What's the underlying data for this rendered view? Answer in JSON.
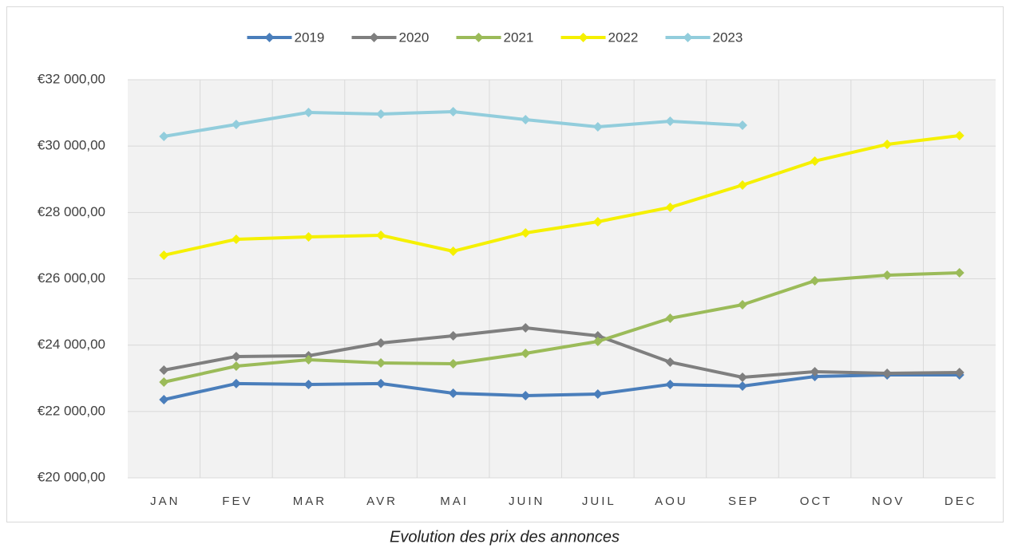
{
  "chart_data": {
    "type": "line",
    "caption": "Evolution des prix des annonces",
    "categories": [
      "JAN",
      "FEV",
      "MAR",
      "AVR",
      "MAI",
      "JUIN",
      "JUIL",
      "AOU",
      "SEP",
      "OCT",
      "NOV",
      "DEC"
    ],
    "series": [
      {
        "name": "2019",
        "color": "#4a7ebb",
        "values": [
          22357,
          22840,
          22815,
          22840,
          22550,
          22477,
          22525,
          22815,
          22766,
          23054,
          23102,
          23102
        ]
      },
      {
        "name": "2020",
        "color": "#7f7f7f",
        "values": [
          23247,
          23656,
          23680,
          24064,
          24281,
          24521,
          24281,
          23487,
          23030,
          23199,
          23150,
          23175
        ]
      },
      {
        "name": "2021",
        "color": "#9bbb59",
        "values": [
          22886,
          23367,
          23559,
          23463,
          23439,
          23752,
          24113,
          24810,
          25219,
          25940,
          26109,
          26181
        ]
      },
      {
        "name": "2022",
        "color": "#f5f000",
        "values": [
          26710,
          27191,
          27263,
          27311,
          26830,
          27383,
          27720,
          28153,
          28826,
          29548,
          30053,
          30317
        ]
      },
      {
        "name": "2023",
        "color": "#92cddc",
        "values": [
          30293,
          30654,
          31015,
          30967,
          31039,
          30798,
          30582,
          30750,
          30630,
          null,
          null,
          null
        ]
      }
    ],
    "ylim": [
      20000,
      32000
    ],
    "yticks": [
      {
        "value": 20000,
        "label": "€20 000,00"
      },
      {
        "value": 22000,
        "label": "€22 000,00"
      },
      {
        "value": 24000,
        "label": "€24 000,00"
      },
      {
        "value": 26000,
        "label": "€26 000,00"
      },
      {
        "value": 28000,
        "label": "€28 000,00"
      },
      {
        "value": 30000,
        "label": "€30 000,00"
      },
      {
        "value": 32000,
        "label": "€32 000,00"
      }
    ],
    "grid": true,
    "legend": "top"
  }
}
